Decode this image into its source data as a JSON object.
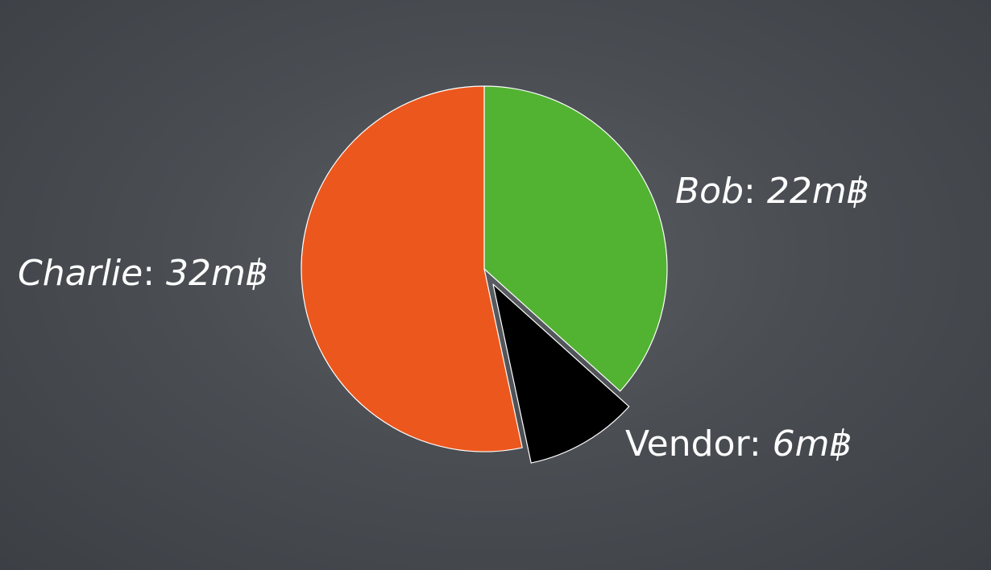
{
  "chart_data": {
    "type": "pie",
    "slices": [
      {
        "name": "Bob",
        "value": 22,
        "value_label": "22m฿",
        "color": "#52b232",
        "exploded": false
      },
      {
        "name": "Vendor",
        "value": 6,
        "value_label": "6m฿",
        "color": "#000000",
        "exploded": true
      },
      {
        "name": "Charlie",
        "value": 32,
        "value_label": "32m฿",
        "color": "#ec571d",
        "exploded": false
      }
    ],
    "separator": ": ",
    "start_angle": "12 o'clock",
    "direction": "clockwise",
    "slice_border_color": "#ffffff",
    "label_color": "#ffffff",
    "background_color": "#4a4e53"
  }
}
